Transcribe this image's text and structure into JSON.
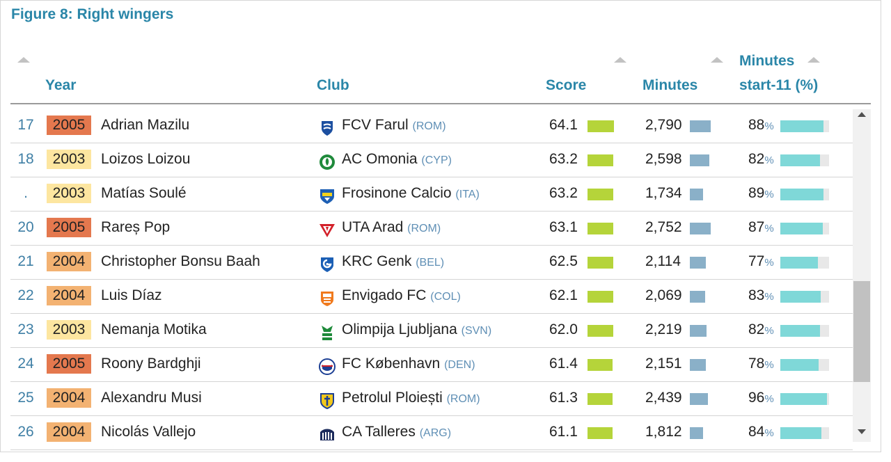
{
  "title": "Figure 8: Right wingers",
  "headers": {
    "year": "Year",
    "club": "Club",
    "score": "Score",
    "minutes": "Minutes",
    "start11_line1": "Minutes",
    "start11_line2": "start-11 (%)"
  },
  "colors": {
    "2005": "#e4784e",
    "2004": "#f3b272",
    "2003": "#fde6a0",
    "score_bar": "#b5d43a",
    "minutes_bar": "#8ab0c8",
    "pct_bar": "#7fd8d8"
  },
  "max": {
    "score": 64.1,
    "minutes": 2790,
    "pct": 100
  },
  "rows": [
    {
      "rank": "17",
      "year": "2005",
      "name": "Adrian Mazilu",
      "club": "FCV Farul",
      "country": "(ROM)",
      "crest": "farul-crest-icon",
      "score": "64.1",
      "score_value": 64.1,
      "minutes": "2,790",
      "minutes_value": 2790,
      "pct": "88",
      "pct_value": 88
    },
    {
      "rank": "18",
      "year": "2003",
      "name": "Loizos Loizou",
      "club": "AC Omonia",
      "country": "(CYP)",
      "crest": "omonia-crest-icon",
      "score": "63.2",
      "score_value": 63.2,
      "minutes": "2,598",
      "minutes_value": 2598,
      "pct": "82",
      "pct_value": 82
    },
    {
      "rank": ".",
      "year": "2003",
      "name": "Matías Soulé",
      "club": "Frosinone Calcio",
      "country": "(ITA)",
      "crest": "frosinone-crest-icon",
      "score": "63.2",
      "score_value": 63.2,
      "minutes": "1,734",
      "minutes_value": 1734,
      "pct": "89",
      "pct_value": 89
    },
    {
      "rank": "20",
      "year": "2005",
      "name": "Rareș Pop",
      "club": "UTA Arad",
      "country": "(ROM)",
      "crest": "uta-crest-icon",
      "score": "63.1",
      "score_value": 63.1,
      "minutes": "2,752",
      "minutes_value": 2752,
      "pct": "87",
      "pct_value": 87
    },
    {
      "rank": "21",
      "year": "2004",
      "name": "Christopher Bonsu Baah",
      "club": "KRC Genk",
      "country": "(BEL)",
      "crest": "genk-crest-icon",
      "score": "62.5",
      "score_value": 62.5,
      "minutes": "2,114",
      "minutes_value": 2114,
      "pct": "77",
      "pct_value": 77
    },
    {
      "rank": "22",
      "year": "2004",
      "name": "Luis Díaz",
      "club": "Envigado FC",
      "country": "(COL)",
      "crest": "envigado-crest-icon",
      "score": "62.1",
      "score_value": 62.1,
      "minutes": "2,069",
      "minutes_value": 2069,
      "pct": "83",
      "pct_value": 83
    },
    {
      "rank": "23",
      "year": "2003",
      "name": "Nemanja Motika",
      "club": "Olimpija Ljubljana",
      "country": "(SVN)",
      "crest": "olimpija-crest-icon",
      "score": "62.0",
      "score_value": 62.0,
      "minutes": "2,219",
      "minutes_value": 2219,
      "pct": "82",
      "pct_value": 82
    },
    {
      "rank": "24",
      "year": "2005",
      "name": "Roony Bardghji",
      "club": "FC København",
      "country": "(DEN)",
      "crest": "kobenhavn-crest-icon",
      "score": "61.4",
      "score_value": 61.4,
      "minutes": "2,151",
      "minutes_value": 2151,
      "pct": "78",
      "pct_value": 78
    },
    {
      "rank": "25",
      "year": "2004",
      "name": "Alexandru Musi",
      "club": "Petrolul Ploiești",
      "country": "(ROM)",
      "crest": "petrolul-crest-icon",
      "score": "61.3",
      "score_value": 61.3,
      "minutes": "2,439",
      "minutes_value": 2439,
      "pct": "96",
      "pct_value": 96
    },
    {
      "rank": "26",
      "year": "2004",
      "name": "Nicolás Vallejo",
      "club": "CA Talleres",
      "country": "(ARG)",
      "crest": "talleres-crest-icon",
      "score": "61.1",
      "score_value": 61.1,
      "minutes": "1,812",
      "minutes_value": 1812,
      "pct": "84",
      "pct_value": 84
    }
  ]
}
